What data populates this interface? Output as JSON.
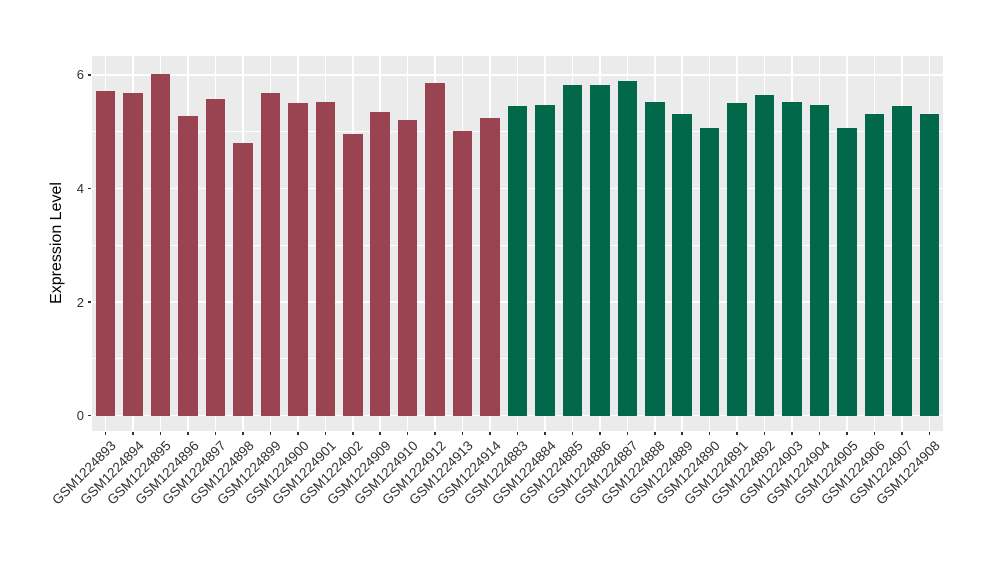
{
  "figure": {
    "background": "#FFFFFF",
    "panel_background": "#EBEBEB",
    "gridline_color": "#FFFFFF",
    "axis_text_color": "#303030",
    "tick_color": "#333333"
  },
  "chart_data": {
    "type": "bar",
    "title": "",
    "xlabel": "",
    "ylabel": "Expression Level",
    "ylim": [
      0,
      6.33
    ],
    "yticks": [
      0,
      2,
      4,
      6
    ],
    "yticks_minor": [
      1,
      3,
      5
    ],
    "grid": true,
    "legend": "none",
    "bar_groups": [
      {
        "name": "group-1",
        "color": "#9A4452",
        "count": 15
      },
      {
        "name": "group-2",
        "color": "#016849",
        "count": 16
      }
    ],
    "categories": [
      "GSM1224893",
      "GSM1224894",
      "GSM1224895",
      "GSM1224896",
      "GSM1224897",
      "GSM1224898",
      "GSM1224899",
      "GSM1224900",
      "GSM1224901",
      "GSM1224902",
      "GSM1224909",
      "GSM1224910",
      "GSM1224912",
      "GSM1224913",
      "GSM1224914",
      "GSM1224883",
      "GSM1224884",
      "GSM1224885",
      "GSM1224886",
      "GSM1224887",
      "GSM1224888",
      "GSM1224889",
      "GSM1224890",
      "GSM1224891",
      "GSM1224892",
      "GSM1224903",
      "GSM1224904",
      "GSM1224905",
      "GSM1224906",
      "GSM1224907",
      "GSM1224908"
    ],
    "values": [
      5.72,
      5.68,
      6.02,
      5.28,
      5.58,
      4.81,
      5.69,
      5.51,
      5.52,
      4.96,
      5.35,
      5.21,
      5.85,
      5.02,
      5.25,
      5.45,
      5.47,
      5.83,
      5.83,
      5.9,
      5.52,
      5.32,
      5.06,
      5.5,
      5.65,
      5.52,
      5.47,
      5.06,
      5.32,
      5.45,
      5.31
    ],
    "bar_colors": [
      "#9A4452",
      "#9A4452",
      "#9A4452",
      "#9A4452",
      "#9A4452",
      "#9A4452",
      "#9A4452",
      "#9A4452",
      "#9A4452",
      "#9A4452",
      "#9A4452",
      "#9A4452",
      "#9A4452",
      "#9A4452",
      "#9A4452",
      "#016849",
      "#016849",
      "#016849",
      "#016849",
      "#016849",
      "#016849",
      "#016849",
      "#016849",
      "#016849",
      "#016849",
      "#016849",
      "#016849",
      "#016849",
      "#016849",
      "#016849",
      "#016849"
    ],
    "ytick_labels": [
      "0",
      "2",
      "4",
      "6"
    ]
  }
}
